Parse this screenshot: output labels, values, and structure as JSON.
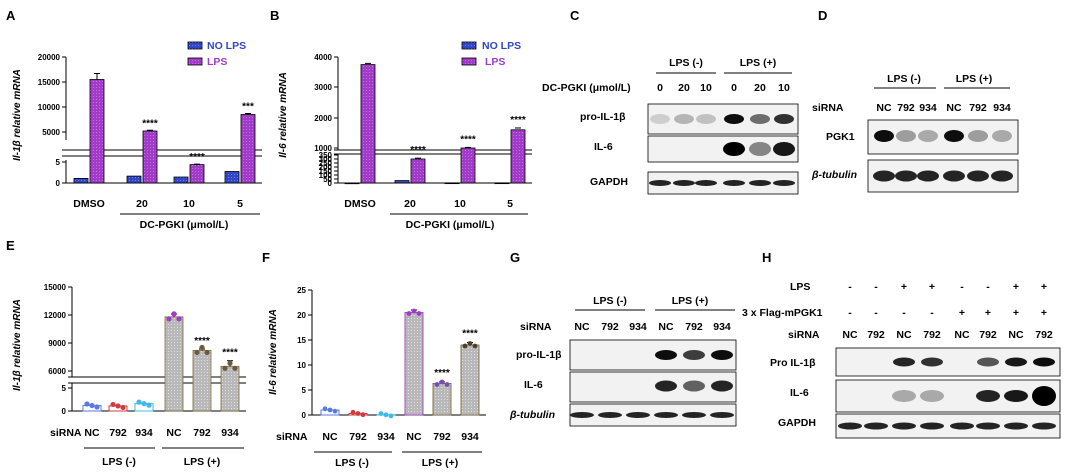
{
  "panel_letters": [
    "A",
    "B",
    "C",
    "D",
    "E",
    "F",
    "G",
    "H"
  ],
  "colors": {
    "no_lps": "#3246c8",
    "lps": "#a03cc8",
    "nc_neg": "#5a7ae0",
    "si792_neg": "#d23c3c",
    "si934_neg": "#40b8e8",
    "sirna_pos_fill": "#c0c0c0",
    "sirna_pos_edge": "#7a6a3a",
    "blot_bg": "#f2f2f2"
  },
  "legend": {
    "no_lps": "NO LPS",
    "lps": "LPS"
  },
  "chart_data": [
    {
      "panel": "A",
      "type": "bar",
      "ylabel": "Il-1β relative mRNA",
      "xlabel": "DC-PGKI (μmol/L)",
      "categories": [
        "DMSO",
        "20",
        "10",
        "5"
      ],
      "series": [
        {
          "name": "NO LPS",
          "values": [
            1000,
            1500,
            1300,
            2500
          ],
          "errors": [
            100,
            150,
            120,
            250
          ]
        },
        {
          "name": "LPS",
          "values": [
            15500,
            5200,
            4000,
            8500
          ],
          "errors": [
            1200,
            150,
            100,
            200
          ]
        }
      ],
      "stars": [
        "",
        "****",
        "****",
        "***"
      ],
      "y_ticks": [
        "0",
        "5",
        "5000",
        "10000",
        "15000",
        "20000"
      ],
      "broken_axis": true
    },
    {
      "panel": "B",
      "type": "bar",
      "ylabel": "Il-6 relative mRNA",
      "xlabel": "DC-PGKI (μmol/L)",
      "categories": [
        "DMSO",
        "20",
        "10",
        "5"
      ],
      "series": [
        {
          "name": "NO LPS",
          "values": [
            1,
            30,
            2,
            2
          ],
          "errors": [
            0,
            5,
            0,
            0
          ]
        },
        {
          "name": "LPS",
          "values": [
            3750,
            300,
            1000,
            1600
          ],
          "errors": [
            40,
            10,
            20,
            60
          ]
        }
      ],
      "stars": [
        "",
        "****",
        "****",
        "****"
      ],
      "y_ticks": [
        "0",
        "50",
        "100",
        "150",
        "200",
        "250",
        "300",
        "350",
        "1000",
        "2000",
        "3000",
        "4000"
      ],
      "broken_axis": true
    },
    {
      "panel": "E",
      "type": "bar",
      "ylabel": "Il-1β relative mRNA",
      "categories": [
        "NC",
        "792",
        "934",
        "NC",
        "792",
        "934"
      ],
      "groups": [
        "LPS (-)",
        "LPS (+)"
      ],
      "values": [
        1.2,
        1.1,
        1.6,
        11800,
        8200,
        6500
      ],
      "errors": [
        0.2,
        0.2,
        0.3,
        300,
        150,
        600
      ],
      "stars": [
        "",
        "",
        "",
        "",
        "****",
        "****"
      ],
      "y_ticks": [
        "0",
        "5",
        "6000",
        "9000",
        "12000",
        "15000"
      ],
      "row_label": "siRNA",
      "broken_axis": true
    },
    {
      "panel": "F",
      "type": "bar",
      "ylabel": "Il-6 relative mRNA",
      "categories": [
        "NC",
        "792",
        "934",
        "NC",
        "792",
        "934"
      ],
      "groups": [
        "LPS (-)",
        "LPS (+)"
      ],
      "values": [
        1,
        0.3,
        0.05,
        20.5,
        6.3,
        14
      ],
      "errors": [
        0.3,
        0.1,
        0.03,
        0.5,
        0.3,
        0.5
      ],
      "stars": [
        "",
        "",
        "",
        "",
        "****",
        "****"
      ],
      "y_ticks": [
        "0",
        "5",
        "10",
        "15",
        "20",
        "25"
      ],
      "ylim": [
        0,
        25
      ],
      "row_label": "siRNA"
    }
  ],
  "blot_C": {
    "group_neg": "LPS (-)",
    "group_pos": "LPS (+)",
    "conc_label": "DC-PGKI (μmol/L)",
    "concs": [
      "0",
      "20",
      "10",
      "0",
      "20",
      "10"
    ],
    "rows": [
      "pro-IL-1β",
      "IL-6",
      "GAPDH"
    ]
  },
  "blot_D": {
    "group_neg": "LPS (-)",
    "group_pos": "LPS (+)",
    "sirna_label": "siRNA",
    "lanes": [
      "NC",
      "792",
      "934",
      "NC",
      "792",
      "934"
    ],
    "rows": [
      "PGK1",
      "β-tubulin"
    ]
  },
  "blot_G": {
    "group_neg": "LPS (-)",
    "group_pos": "LPS (+)",
    "sirna_label": "siRNA",
    "lanes": [
      "NC",
      "792",
      "934",
      "NC",
      "792",
      "934"
    ],
    "rows": [
      "pro-IL-1β",
      "IL-6",
      "β-tubulin"
    ]
  },
  "blot_H": {
    "lps_label": "LPS",
    "flag_label": "3 x Flag-mPGK1",
    "sirna_label": "siRNA",
    "lps_signs": [
      "-",
      "-",
      "+",
      "+",
      "-",
      "-",
      "+",
      "+"
    ],
    "flag_signs": [
      "-",
      "-",
      "-",
      "-",
      "+",
      "+",
      "+",
      "+"
    ],
    "lanes": [
      "NC",
      "792",
      "NC",
      "792",
      "NC",
      "792",
      "NC",
      "792"
    ],
    "rows": [
      "Pro IL-1β",
      "IL-6",
      "GAPDH"
    ]
  }
}
